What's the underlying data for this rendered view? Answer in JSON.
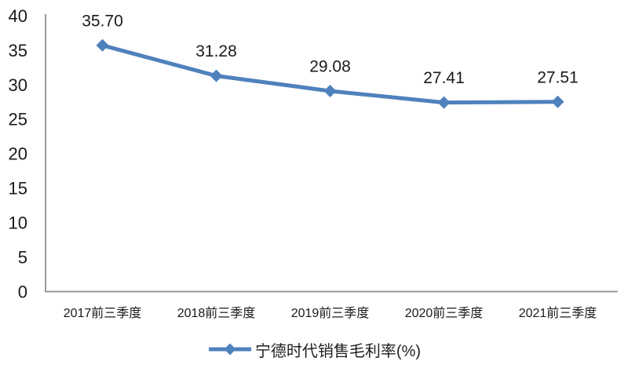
{
  "chart_data": {
    "type": "line",
    "title": "",
    "xlabel": "",
    "ylabel": "",
    "categories": [
      "2017前三季度",
      "2018前三季度",
      "2019前三季度",
      "2020前三季度",
      "2021前三季度"
    ],
    "series": [
      {
        "name": "宁德时代销售毛利率(%)",
        "values": [
          35.7,
          31.28,
          29.08,
          27.41,
          27.51
        ],
        "data_labels": [
          "35.70",
          "31.28",
          "29.08",
          "27.41",
          "27.51"
        ],
        "color": "#4F81BD",
        "marker": "diamond"
      }
    ],
    "legend_label": "宁德时代销售毛利率(%)",
    "legend_position": "bottom",
    "ylim": [
      0,
      40
    ],
    "ytick_step": 5,
    "yticks": [
      0,
      5,
      10,
      15,
      20,
      25,
      30,
      35,
      40
    ],
    "grid": false,
    "axis_color": "#9A9A9A",
    "text_color": "#1A1A1A"
  }
}
